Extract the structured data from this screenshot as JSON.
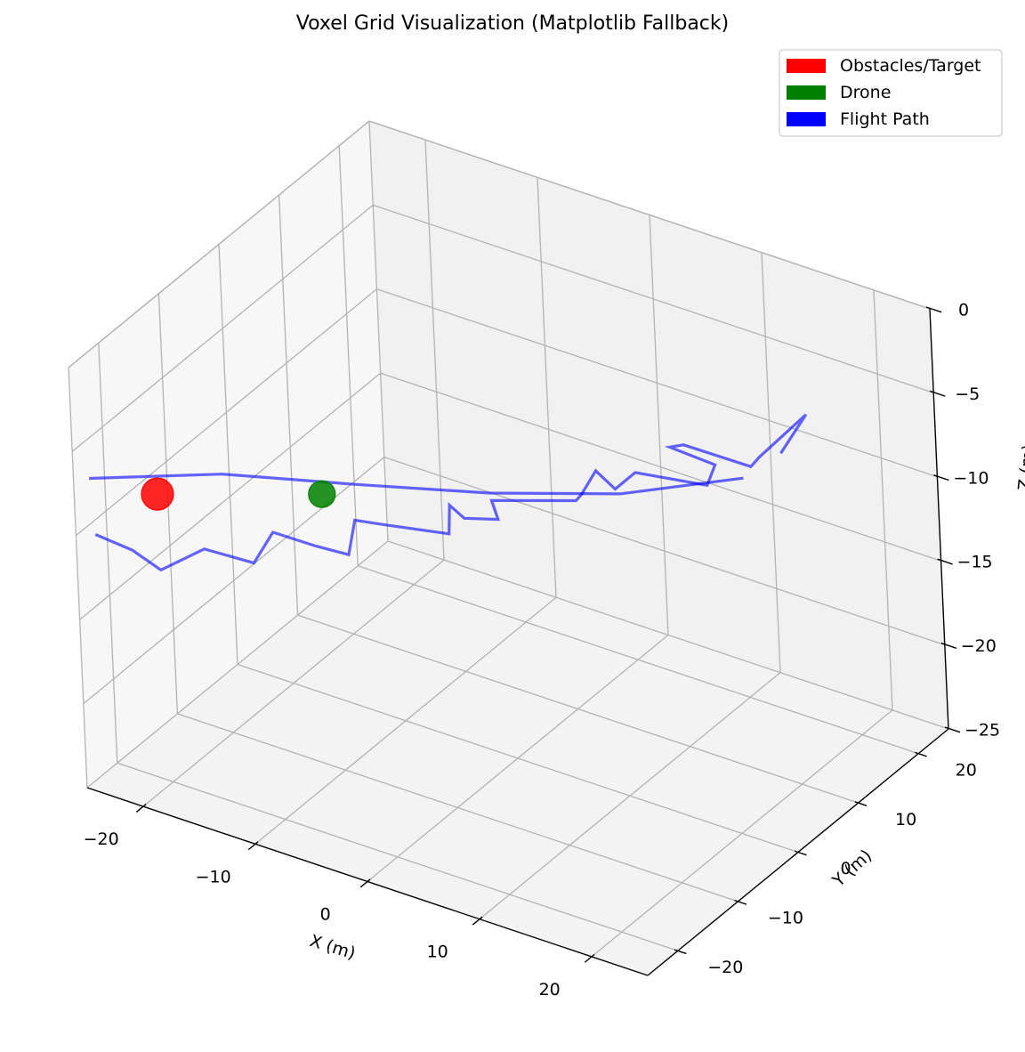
{
  "chart_data": {
    "type": "line",
    "title": "Voxel Grid Visualization (Matplotlib Fallback)",
    "projection": "3d",
    "xlabel": "X (m)",
    "ylabel": "Y (m)",
    "zlabel": "Z (m)",
    "xlim": [
      -25,
      25
    ],
    "ylim": [
      -25,
      25
    ],
    "zlim": [
      -25,
      0
    ],
    "xticks": [
      -20,
      -10,
      0,
      10,
      20
    ],
    "yticks": [
      -20,
      -10,
      0,
      10,
      20
    ],
    "zticks": [
      0,
      -5,
      -10,
      -15,
      -20,
      -25
    ],
    "xtick_labels": [
      "−20",
      "−10",
      "0",
      "10",
      "20"
    ],
    "ytick_labels": [
      "−20",
      "−10",
      "0",
      "10",
      "20"
    ],
    "ztick_labels": [
      "0",
      "−5",
      "−10",
      "−15",
      "−20",
      "−25"
    ],
    "grid": true,
    "legend": {
      "position": "top-right",
      "entries": [
        {
          "label": "Obstacles/Target",
          "color": "#ff0000"
        },
        {
          "label": "Drone",
          "color": "#008000"
        },
        {
          "label": "Flight Path",
          "color": "#0000ff"
        }
      ]
    },
    "series": [
      {
        "kind": "path",
        "color": "#0000ff",
        "points": [
          [
            -25.6,
            -20.8,
            -11.3
          ],
          [
            -23.4,
            -18.9,
            -12.3
          ],
          [
            -21.0,
            -18.7,
            -13.0
          ],
          [
            -18.4,
            -16.2,
            -11.9
          ],
          [
            -14.3,
            -15.6,
            -12.0
          ],
          [
            -13.2,
            -14.3,
            -10.3
          ],
          [
            -9.8,
            -13.5,
            -10.6
          ],
          [
            -7.6,
            -12.2,
            -11.0
          ],
          [
            -7.2,
            -11.7,
            -9.0
          ],
          [
            -4.9,
            -11.2,
            -8.9
          ],
          [
            -0.3,
            -8.9,
            -9.1
          ],
          [
            -0.2,
            -8.8,
            -7.4
          ],
          [
            0.8,
            -8.3,
            -8.1
          ],
          [
            2.9,
            -6.6,
            -8.2
          ],
          [
            2.5,
            -6.8,
            -7.1
          ],
          [
            8.0,
            -3.0,
            -7.0
          ],
          [
            9.2,
            -4.2,
            -6.0
          ],
          [
            10.3,
            -3.7,
            -4.5
          ],
          [
            11.2,
            -2.3,
            -5.8
          ],
          [
            12.4,
            -1.1,
            -4.9
          ],
          [
            17.0,
            2.2,
            -5.6
          ],
          [
            17.4,
            2.9,
            -4.5
          ],
          [
            14.1,
            1.6,
            -3.8
          ],
          [
            14.8,
            2.6,
            -3.8
          ],
          [
            19.0,
            5.8,
            -5.1
          ],
          [
            19.6,
            6.2,
            -4.5
          ],
          [
            22.5,
            8.8,
            -2.1
          ],
          [
            20.8,
            7.5,
            -4.4
          ]
        ]
      },
      {
        "kind": "path",
        "color": "#0000ff",
        "points": [
          [
            -25.9,
            -20.9,
            -8.0
          ],
          [
            -17.0,
            -15.3,
            -7.4
          ],
          [
            -7.0,
            -11.8,
            -6.8
          ],
          [
            3.0,
            -8.0,
            -6.2
          ],
          [
            12.0,
            -3.0,
            -5.7
          ],
          [
            19.0,
            4.5,
            -5.4
          ]
        ]
      },
      {
        "kind": "point",
        "name": "",
        "color": "#ff0000",
        "points": [
          [
            -20.9,
            -18.9,
            -8.4
          ]
        ]
      },
      {
        "kind": "point",
        "name": "",
        "color": "#008000",
        "points": [
          [
            -9.0,
            -13.6,
            -7.3
          ]
        ]
      }
    ],
    "colors": {
      "pane_left": "#f7f7f7",
      "pane_back": "#f1f1f1",
      "pane_floor": "#f3f3f3",
      "grid": "#b3b3b3",
      "axis": "#000000"
    }
  }
}
